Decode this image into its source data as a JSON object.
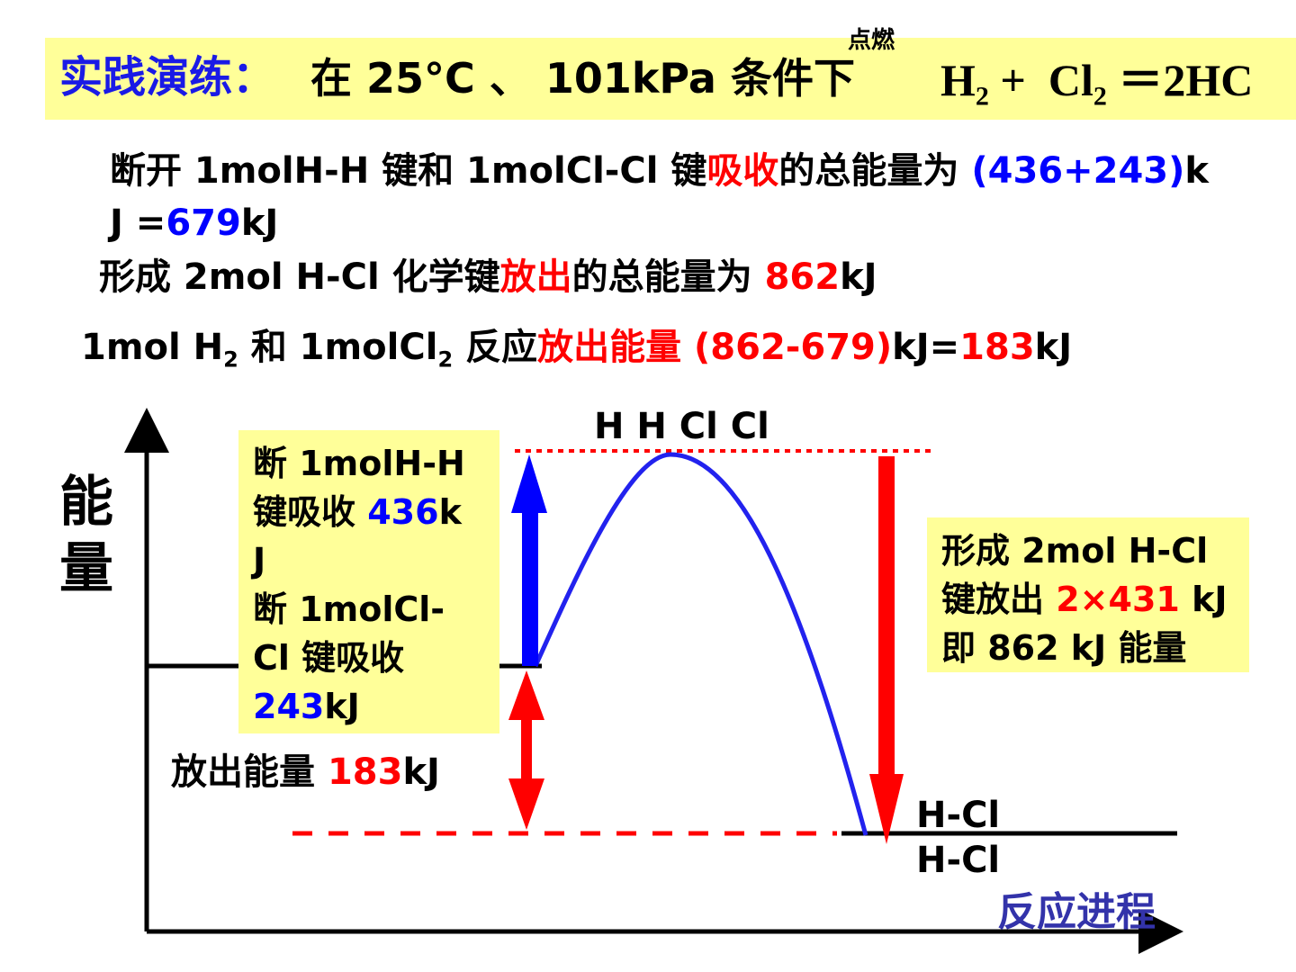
{
  "title": {
    "label": "实践演练：",
    "condition": "在 25°C 、 101kPa 条件下",
    "catalyst": "点燃",
    "equation": {
      "h": "H",
      "h_sub": "2",
      "plus": "+",
      "cl": "Cl",
      "cl_sub": "2",
      "product": "＝2HC"
    }
  },
  "statements": [
    [
      "断开 1molH-H 键和 1molCl-Cl 键",
      "吸收",
      "的总能量为 ",
      "(436+243)",
      "k"
    ],
    [
      "J =",
      "679",
      "kJ"
    ],
    [
      "形成 2mol H-Cl 化学键",
      "放出",
      "的总能量为 ",
      "862",
      "kJ"
    ],
    [
      "1mol H",
      "2",
      " 和 1molCl",
      "2",
      " 反应",
      "放出能量 (862-679)",
      "kJ=",
      "183",
      "kJ"
    ]
  ],
  "diagram": {
    "y_axis_label": [
      "能",
      "量"
    ],
    "x_axis_label": "反应进程",
    "transition_label": "H H Cl Cl",
    "product_labels": [
      "H-Cl",
      "H-Cl"
    ],
    "left_box": [
      [
        "断 1molH-H"
      ],
      [
        "键吸收 ",
        "436",
        "k"
      ],
      [
        "J"
      ],
      [
        "断 1molCl-"
      ],
      [
        "Cl 键吸收"
      ],
      [
        "243",
        "kJ"
      ]
    ],
    "right_box": [
      [
        "形成 2mol H-Cl"
      ],
      [
        "键放出 ",
        "2×431",
        " kJ"
      ],
      [
        "即 862 kJ 能量"
      ]
    ],
    "released": [
      "放出能量 ",
      "183",
      "kJ"
    ]
  }
}
